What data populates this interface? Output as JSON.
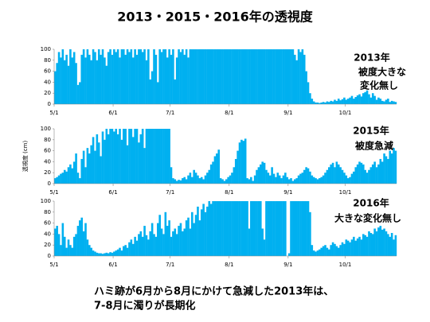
{
  "slide": {
    "title": "2013・2015・2016年の透視度",
    "note": [
      "ハミ跡が6月から8月にかけて急減した2013年は、",
      "7-8月に濁りが長期化"
    ]
  },
  "chart_data": [
    {
      "type": "bar",
      "color": "#00b0f0",
      "ylim": [
        0,
        100
      ],
      "yticks": [
        0,
        20,
        40,
        60,
        80,
        100
      ],
      "annotations": [
        "2013年",
        "被度大きな",
        "変化無し"
      ],
      "categories": [
        "5/1",
        null,
        null,
        null,
        null,
        null,
        null,
        null,
        null,
        null,
        null,
        null,
        null,
        null,
        null,
        null,
        null,
        null,
        null,
        null,
        null,
        null,
        null,
        null,
        null,
        null,
        null,
        null,
        null,
        null,
        null,
        "6/1",
        null,
        null,
        null,
        null,
        null,
        null,
        null,
        null,
        null,
        null,
        null,
        null,
        null,
        null,
        null,
        null,
        null,
        null,
        null,
        null,
        null,
        null,
        null,
        null,
        null,
        null,
        null,
        null,
        null,
        "7/1",
        null,
        null,
        null,
        null,
        null,
        null,
        null,
        null,
        null,
        null,
        null,
        null,
        null,
        null,
        null,
        null,
        null,
        null,
        null,
        null,
        null,
        null,
        null,
        null,
        null,
        null,
        null,
        null,
        null,
        null,
        "8/1",
        null,
        null,
        null,
        null,
        null,
        null,
        null,
        null,
        null,
        null,
        null,
        null,
        null,
        null,
        null,
        null,
        null,
        null,
        null,
        null,
        null,
        null,
        null,
        null,
        null,
        null,
        null,
        null,
        null,
        null,
        "9/1",
        null,
        null,
        null,
        null,
        null,
        null,
        null,
        null,
        null,
        null,
        null,
        null,
        null,
        null,
        null,
        null,
        null,
        null,
        null,
        null,
        null,
        null,
        null,
        null,
        null,
        null,
        null,
        null,
        null,
        "10/1",
        null,
        null,
        null,
        null,
        null,
        null,
        null,
        null,
        null,
        null,
        null,
        null,
        null,
        null,
        null,
        null,
        null,
        null,
        null,
        null,
        null,
        null,
        null,
        null,
        null,
        null
      ],
      "values": [
        60,
        75,
        95,
        85,
        100,
        80,
        90,
        70,
        100,
        85,
        95,
        75,
        35,
        40,
        90,
        100,
        85,
        100,
        90,
        80,
        100,
        95,
        80,
        100,
        90,
        100,
        85,
        70,
        95,
        100,
        90,
        100,
        95,
        100,
        85,
        100,
        100,
        90,
        100,
        95,
        100,
        85,
        100,
        90,
        100,
        100,
        95,
        100,
        80,
        100,
        45,
        60,
        100,
        90,
        40,
        100,
        95,
        100,
        100,
        85,
        100,
        90,
        100,
        45,
        85,
        100,
        95,
        100,
        90,
        100,
        85,
        100,
        100,
        100,
        100,
        100,
        100,
        100,
        100,
        100,
        100,
        100,
        100,
        100,
        100,
        100,
        100,
        100,
        100,
        100,
        100,
        100,
        100,
        100,
        100,
        100,
        100,
        100,
        100,
        100,
        100,
        100,
        100,
        100,
        100,
        100,
        100,
        100,
        100,
        100,
        100,
        100,
        100,
        100,
        100,
        100,
        100,
        100,
        100,
        100,
        100,
        100,
        100,
        100,
        100,
        100,
        90,
        80,
        100,
        95,
        100,
        90,
        60,
        40,
        20,
        10,
        5,
        3,
        3,
        2,
        3,
        4,
        3,
        5,
        4,
        6,
        5,
        8,
        6,
        10,
        7,
        9,
        12,
        8,
        10,
        12,
        15,
        10,
        13,
        16,
        18,
        14,
        20,
        22,
        25,
        18,
        12,
        20,
        15,
        8,
        12,
        10,
        6,
        5,
        8,
        10,
        4,
        6,
        5,
        4
      ]
    },
    {
      "type": "bar",
      "color": "#00b0f0",
      "ylim": [
        0,
        100
      ],
      "yticks": [
        0,
        20,
        40,
        60,
        80,
        100
      ],
      "y_label": "透視度 (cm)",
      "annotations": [
        "2015年",
        "被度急減"
      ],
      "categories": [
        "5/1",
        null,
        null,
        null,
        null,
        null,
        null,
        null,
        null,
        null,
        null,
        null,
        null,
        null,
        null,
        null,
        null,
        null,
        null,
        null,
        null,
        null,
        null,
        null,
        null,
        null,
        null,
        null,
        null,
        null,
        null,
        "6/1",
        null,
        null,
        null,
        null,
        null,
        null,
        null,
        null,
        null,
        null,
        null,
        null,
        null,
        null,
        null,
        null,
        null,
        null,
        null,
        null,
        null,
        null,
        null,
        null,
        null,
        null,
        null,
        null,
        null,
        "7/1",
        null,
        null,
        null,
        null,
        null,
        null,
        null,
        null,
        null,
        null,
        null,
        null,
        null,
        null,
        null,
        null,
        null,
        null,
        null,
        null,
        null,
        null,
        null,
        null,
        null,
        null,
        null,
        null,
        null,
        null,
        "8/1",
        null,
        null,
        null,
        null,
        null,
        null,
        null,
        null,
        null,
        null,
        null,
        null,
        null,
        null,
        null,
        null,
        null,
        null,
        null,
        null,
        null,
        null,
        null,
        null,
        null,
        null,
        null,
        null,
        null,
        null,
        "9/1",
        null,
        null,
        null,
        null,
        null,
        null,
        null,
        null,
        null,
        null,
        null,
        null,
        null,
        null,
        null,
        null,
        null,
        null,
        null,
        null,
        null,
        null,
        null,
        null,
        null,
        null,
        null,
        null,
        null,
        "10/1",
        null,
        null,
        null,
        null,
        null,
        null,
        null,
        null,
        null,
        null,
        null,
        null,
        null,
        null,
        null,
        null,
        null,
        null,
        null,
        null,
        null,
        null,
        null,
        null,
        null,
        null
      ],
      "values": [
        10,
        12,
        15,
        18,
        20,
        25,
        22,
        30,
        35,
        28,
        40,
        55,
        20,
        10,
        45,
        60,
        30,
        65,
        55,
        70,
        85,
        60,
        90,
        75,
        50,
        95,
        80,
        100,
        90,
        100,
        100,
        95,
        100,
        90,
        100,
        80,
        100,
        100,
        70,
        100,
        100,
        85,
        100,
        100,
        75,
        90,
        100,
        65,
        100,
        100,
        100,
        100,
        100,
        100,
        100,
        100,
        100,
        100,
        100,
        100,
        100,
        30,
        10,
        8,
        5,
        7,
        6,
        10,
        12,
        8,
        15,
        20,
        12,
        25,
        20,
        15,
        10,
        12,
        8,
        15,
        20,
        25,
        35,
        40,
        50,
        55,
        62,
        10,
        8,
        5,
        8,
        12,
        15,
        20,
        30,
        45,
        60,
        75,
        80,
        78,
        82,
        10,
        8,
        12,
        5,
        15,
        25,
        30,
        35,
        40,
        38,
        25,
        20,
        15,
        30,
        18,
        12,
        20,
        15,
        10,
        15,
        20,
        12,
        8,
        10,
        5,
        8,
        10,
        15,
        18,
        20,
        25,
        30,
        28,
        22,
        15,
        12,
        10,
        8,
        10,
        12,
        15,
        20,
        25,
        30,
        35,
        38,
        30,
        40,
        35,
        30,
        25,
        20,
        15,
        10,
        12,
        18,
        22,
        30,
        35,
        40,
        38,
        35,
        25,
        20,
        25,
        30,
        35,
        40,
        30,
        35,
        45,
        40,
        55,
        50,
        45,
        60,
        55,
        65,
        60
      ]
    },
    {
      "type": "bar",
      "color": "#00b0f0",
      "ylim": [
        0,
        100
      ],
      "yticks": [
        0,
        20,
        40,
        60,
        80,
        100
      ],
      "annotations": [
        "2016年",
        "大きな変化無し"
      ],
      "categories": [
        "5/1",
        null,
        null,
        null,
        null,
        null,
        null,
        null,
        null,
        null,
        null,
        null,
        null,
        null,
        null,
        null,
        null,
        null,
        null,
        null,
        null,
        null,
        null,
        null,
        null,
        null,
        null,
        null,
        null,
        null,
        null,
        "6/1",
        null,
        null,
        null,
        null,
        null,
        null,
        null,
        null,
        null,
        null,
        null,
        null,
        null,
        null,
        null,
        null,
        null,
        null,
        null,
        null,
        null,
        null,
        null,
        null,
        null,
        null,
        null,
        null,
        null,
        "7/1",
        null,
        null,
        null,
        null,
        null,
        null,
        null,
        null,
        null,
        null,
        null,
        null,
        null,
        null,
        null,
        null,
        null,
        null,
        null,
        null,
        null,
        null,
        null,
        null,
        null,
        null,
        null,
        null,
        null,
        null,
        "8/1",
        null,
        null,
        null,
        null,
        null,
        null,
        null,
        null,
        null,
        null,
        null,
        null,
        null,
        null,
        null,
        null,
        null,
        null,
        null,
        null,
        null,
        null,
        null,
        null,
        null,
        null,
        null,
        null,
        null,
        null,
        "9/1",
        null,
        null,
        null,
        null,
        null,
        null,
        null,
        null,
        null,
        null,
        null,
        null,
        null,
        null,
        null,
        null,
        null,
        null,
        null,
        null,
        null,
        null,
        null,
        null,
        null,
        null,
        null,
        null,
        null,
        "10/1",
        null,
        null,
        null,
        null,
        null,
        null,
        null,
        null,
        null,
        null,
        null,
        null,
        null,
        null,
        null,
        null,
        null,
        null,
        null,
        null,
        null,
        null,
        null,
        null,
        null,
        null
      ],
      "values": [
        50,
        55,
        40,
        20,
        60,
        35,
        15,
        30,
        20,
        15,
        35,
        40,
        55,
        65,
        70,
        45,
        60,
        30,
        20,
        15,
        10,
        8,
        6,
        5,
        5,
        4,
        5,
        6,
        5,
        7,
        6,
        8,
        10,
        12,
        15,
        10,
        18,
        20,
        15,
        25,
        30,
        22,
        35,
        28,
        40,
        45,
        35,
        55,
        38,
        30,
        45,
        60,
        40,
        35,
        60,
        75,
        50,
        40,
        80,
        55,
        65,
        35,
        45,
        50,
        40,
        55,
        60,
        45,
        50,
        65,
        70,
        50,
        80,
        60,
        75,
        90,
        65,
        85,
        95,
        80,
        90,
        100,
        95,
        100,
        100,
        100,
        100,
        100,
        100,
        100,
        100,
        100,
        100,
        100,
        100,
        100,
        100,
        100,
        100,
        100,
        100,
        100,
        50,
        100,
        100,
        100,
        100,
        100,
        100,
        50,
        30,
        100,
        100,
        100,
        100,
        100,
        100,
        100,
        100,
        100,
        100,
        100,
        0,
        5,
        100,
        100,
        100,
        100,
        100,
        100,
        100,
        100,
        100,
        100,
        80,
        20,
        10,
        8,
        10,
        12,
        15,
        18,
        20,
        15,
        12,
        20,
        25,
        22,
        18,
        15,
        20,
        25,
        22,
        30,
        28,
        25,
        30,
        35,
        28,
        32,
        35,
        30,
        40,
        38,
        35,
        45,
        42,
        40,
        50,
        45,
        52,
        55,
        48,
        50,
        45,
        40,
        35,
        42,
        30,
        38
      ]
    }
  ]
}
